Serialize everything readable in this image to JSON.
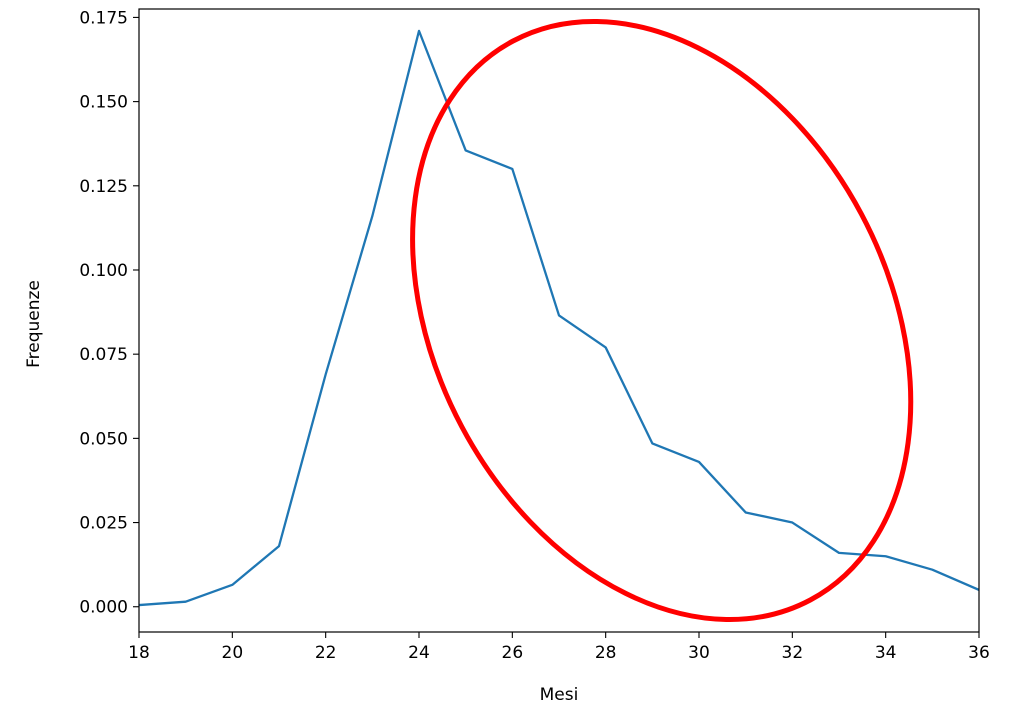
{
  "chart_data": {
    "type": "line",
    "xlabel": "Mesi",
    "ylabel": "Frequenze",
    "xlim": [
      18,
      36
    ],
    "ylim": [
      -0.0075,
      0.1775
    ],
    "x_ticks": [
      18,
      20,
      22,
      24,
      26,
      28,
      30,
      32,
      34,
      36
    ],
    "y_ticks": [
      0.0,
      0.025,
      0.05,
      0.075,
      0.1,
      0.125,
      0.15,
      0.175
    ],
    "y_tick_labels": [
      "0.000",
      "0.025",
      "0.050",
      "0.075",
      "0.100",
      "0.125",
      "0.150",
      "0.175"
    ],
    "grid": false,
    "series": [
      {
        "color": "#1f77b4",
        "x": [
          18,
          19,
          20,
          21,
          22,
          23,
          24,
          25,
          26,
          27,
          28,
          29,
          30,
          31,
          32,
          33,
          34,
          35,
          36
        ],
        "values": [
          0.0005,
          0.0015,
          0.0065,
          0.018,
          0.069,
          0.116,
          0.171,
          0.1355,
          0.13,
          0.0865,
          0.077,
          0.0485,
          0.043,
          0.028,
          0.025,
          0.016,
          0.015,
          0.011,
          0.005
        ]
      }
    ],
    "annotation": {
      "shape": "ellipse",
      "color": "#ff0000",
      "center": [
        29.2,
        0.085
      ],
      "radius_x": 4.85,
      "radius_y": 0.094,
      "rotation": -28
    }
  }
}
